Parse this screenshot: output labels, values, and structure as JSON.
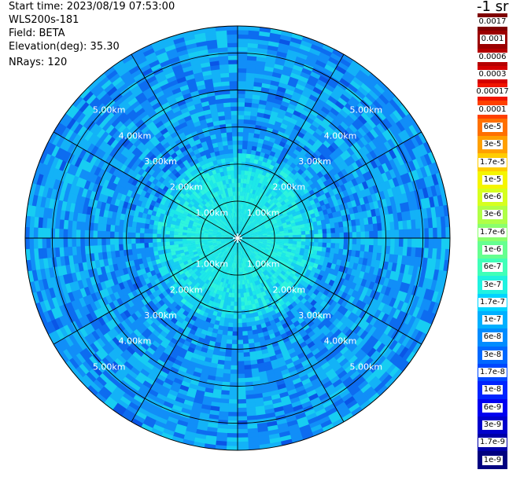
{
  "info": {
    "start_time": "Start time: 2023/08/19 07:53:00",
    "instrument": "WLS200s-181",
    "field": "Field: BETA",
    "elevation": "Elevation(deg): 35.30",
    "nrays": "NRays: 120"
  },
  "colorbar": {
    "units": "-1 sr",
    "items": [
      {
        "label": "0.0017",
        "color": "#7f0000"
      },
      {
        "label": "0.001",
        "color": "#9b0000"
      },
      {
        "label": "0.0006",
        "color": "#b50000"
      },
      {
        "label": "0.0003",
        "color": "#d40000"
      },
      {
        "label": "0.00017",
        "color": "#f01500"
      },
      {
        "label": "0.0001",
        "color": "#ff4000"
      },
      {
        "label": "6e-5",
        "color": "#ff7000"
      },
      {
        "label": "3e-5",
        "color": "#ffa000"
      },
      {
        "label": "1.7e-5",
        "color": "#ffcc00"
      },
      {
        "label": "1e-5",
        "color": "#f5f500"
      },
      {
        "label": "6e-6",
        "color": "#d6ff1f"
      },
      {
        "label": "3e-6",
        "color": "#b0ff47"
      },
      {
        "label": "1.7e-6",
        "color": "#8aff6d"
      },
      {
        "label": "1e-6",
        "color": "#66ff90"
      },
      {
        "label": "6e-7",
        "color": "#40ffb8"
      },
      {
        "label": "3e-7",
        "color": "#20f2e0"
      },
      {
        "label": "1.7e-7",
        "color": "#00d4ff"
      },
      {
        "label": "1e-7",
        "color": "#00b0ff"
      },
      {
        "label": "6e-8",
        "color": "#008cff"
      },
      {
        "label": "3e-8",
        "color": "#0068ff"
      },
      {
        "label": "1.7e-8",
        "color": "#0048ff"
      },
      {
        "label": "1e-8",
        "color": "#0024ff"
      },
      {
        "label": "6e-9",
        "color": "#0000f0"
      },
      {
        "label": "3e-9",
        "color": "#0000cc"
      },
      {
        "label": "1.7e-9",
        "color": "#0000a8"
      },
      {
        "label": "1e-9",
        "color": "#000080"
      }
    ]
  },
  "ppi": {
    "max_range_km": 5.73,
    "range_rings_km": [
      1,
      2,
      3,
      4,
      5
    ],
    "ring_labels": [
      "1.00km",
      "2.00km",
      "3.00km",
      "4.00km",
      "5.00km"
    ],
    "spoke_angles_deg": [
      0,
      30,
      60,
      90,
      120,
      150,
      180,
      210,
      240,
      270,
      300,
      330
    ],
    "field_palette": [
      "#0a55e6",
      "#0d6cf0",
      "#118ef8",
      "#13b2f7",
      "#17cdf2",
      "#1de8e8",
      "#2ef5dc",
      "#25e8e8"
    ]
  }
}
